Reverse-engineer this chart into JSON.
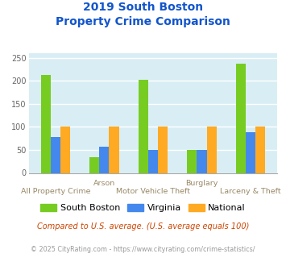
{
  "title_line1": "2019 South Boston",
  "title_line2": "Property Crime Comparison",
  "groups": [
    "All Property Crime",
    "Arson",
    "Motor Vehicle Theft",
    "Burglary",
    "Larceny & Theft"
  ],
  "x_labels_upper": [
    "",
    "Arson",
    "",
    "Burglary",
    ""
  ],
  "x_labels_lower": [
    "All Property Crime",
    "",
    "Motor Vehicle Theft",
    "",
    "Larceny & Theft"
  ],
  "south_boston": [
    212,
    35,
    202,
    50,
    238
  ],
  "virginia": [
    78,
    57,
    50,
    50,
    88
  ],
  "national": [
    100,
    100,
    100,
    100,
    100
  ],
  "colors": {
    "south_boston": "#77cc22",
    "virginia": "#4488ee",
    "national": "#ffaa22"
  },
  "ylim": [
    0,
    260
  ],
  "yticks": [
    0,
    50,
    100,
    150,
    200,
    250
  ],
  "plot_bg": "#d8eef4",
  "title_color": "#1155cc",
  "upper_label_color": "#998866",
  "lower_label_color": "#998866",
  "footnote1": "Compared to U.S. average. (U.S. average equals 100)",
  "footnote2": "© 2025 CityRating.com - https://www.cityrating.com/crime-statistics/",
  "footnote1_color": "#cc4400",
  "footnote2_color": "#999999",
  "footnote2_url_color": "#3366cc"
}
